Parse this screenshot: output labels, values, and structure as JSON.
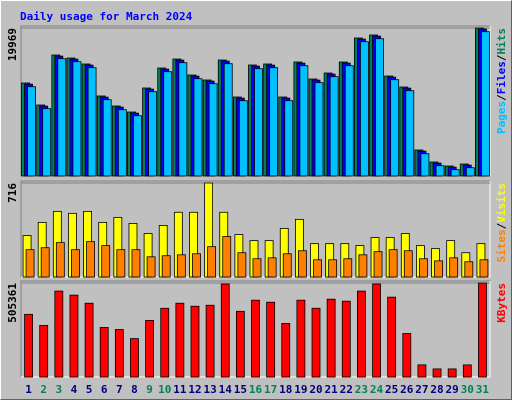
{
  "chart_data": [
    {
      "type": "bar",
      "title": "Daily usage for March 2024",
      "legend_separator": "/",
      "ylim": [
        0,
        19969
      ],
      "yticks": [
        19969
      ],
      "series": [
        {
          "name": "Hits",
          "color": "#00805c",
          "values": [
            12548,
            9580,
            16326,
            15921,
            15112,
            10794,
            9445,
            8635,
            11873,
            14572,
            15786,
            13627,
            12953,
            15651,
            10659,
            14977,
            15112,
            10659,
            15381,
            13088,
            13897,
            15381,
            18620,
            19024,
            13493,
            12008,
            3508,
            1889,
            1349,
            1619,
            19969
          ]
        },
        {
          "name": "Files",
          "color": "#0000ff",
          "values": [
            12398,
            9430,
            16176,
            15771,
            14962,
            10644,
            9295,
            8485,
            11723,
            14422,
            15636,
            13477,
            12803,
            15501,
            10509,
            14827,
            14962,
            10509,
            15231,
            12938,
            13747,
            15231,
            18470,
            18874,
            13343,
            11858,
            3358,
            1739,
            1199,
            1469,
            19819
          ]
        },
        {
          "name": "Pages",
          "color": "#00c0ff",
          "values": [
            12048,
            9080,
            15826,
            15421,
            14612,
            10294,
            8945,
            8135,
            11373,
            14072,
            15286,
            13127,
            12453,
            15151,
            10159,
            14477,
            14612,
            10159,
            14881,
            12588,
            13397,
            14881,
            18120,
            18524,
            12993,
            11508,
            3008,
            1389,
            849,
            1119,
            19469
          ]
        }
      ]
    },
    {
      "type": "bar",
      "legend_separator": "/",
      "ylim": [
        0,
        716
      ],
      "yticks": [
        716
      ],
      "series": [
        {
          "name": "Visits",
          "color": "#ffff00",
          "values": [
            316,
            416,
            500,
            485,
            500,
            416,
            454,
            408,
            331,
            393,
            493,
            493,
            716,
            493,
            323,
            277,
            277,
            370,
            439,
            254,
            254,
            254,
            239,
            300,
            300,
            331,
            239,
            216,
            277,
            185,
            254
          ]
        },
        {
          "name": "Sites",
          "color": "#ff8000",
          "values": [
            208,
            223,
            262,
            208,
            269,
            239,
            208,
            208,
            154,
            162,
            169,
            177,
            231,
            308,
            185,
            139,
            146,
            177,
            200,
            131,
            131,
            139,
            169,
            193,
            208,
            200,
            139,
            123,
            146,
            116,
            131
          ]
        }
      ]
    },
    {
      "type": "bar",
      "ylim": [
        0,
        505361
      ],
      "yticks": [
        505361
      ],
      "categories": [
        "1",
        "2",
        "3",
        "4",
        "5",
        "6",
        "7",
        "8",
        "9",
        "10",
        "11",
        "12",
        "13",
        "14",
        "15",
        "16",
        "17",
        "18",
        "19",
        "20",
        "21",
        "22",
        "23",
        "24",
        "25",
        "26",
        "27",
        "28",
        "29",
        "30",
        "31"
      ],
      "category_colors": [
        "#000080",
        "#00805c",
        "#00805c",
        "#000080",
        "#000080",
        "#000080",
        "#000080",
        "#000080",
        "#00805c",
        "#00805c",
        "#000080",
        "#000080",
        "#000080",
        "#000080",
        "#000080",
        "#00805c",
        "#00805c",
        "#000080",
        "#000080",
        "#000080",
        "#000080",
        "#000080",
        "#00805c",
        "#00805c",
        "#000080",
        "#000080",
        "#000080",
        "#000080",
        "#000080",
        "#00805c",
        "#00805c"
      ],
      "series": [
        {
          "name": "KBytes",
          "color": "#ff0000",
          "values": [
            336900,
            277100,
            461900,
            440200,
            396700,
            266300,
            255400,
            206500,
            304300,
            369500,
            396700,
            380400,
            385800,
            499900,
            353200,
            413000,
            402100,
            288000,
            413000,
            369500,
            418400,
            407600,
            461900,
            499900,
            429300,
            233700,
            65200,
            43500,
            43500,
            65200,
            505361
          ]
        }
      ]
    }
  ]
}
